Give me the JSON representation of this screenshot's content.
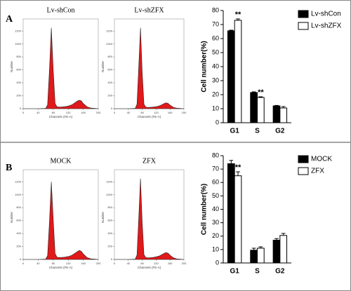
{
  "panel_labels": [
    "A",
    "B"
  ],
  "chart_data": [
    {
      "type": "flow",
      "title": "Lv-shCon",
      "xlabel": "Channels (FE-A)",
      "ylabel": "Number",
      "color": "#e0191b",
      "x": [
        0,
        40,
        60,
        65,
        70,
        75,
        80,
        85,
        90,
        95,
        100,
        110,
        120,
        130,
        140,
        145,
        150,
        155,
        160,
        170,
        180,
        200
      ],
      "values": [
        0,
        0,
        5,
        60,
        600,
        1250,
        600,
        80,
        30,
        25,
        25,
        30,
        40,
        60,
        100,
        120,
        130,
        120,
        80,
        30,
        10,
        0
      ],
      "xlim": [
        0,
        200
      ],
      "xticks": [
        0,
        40,
        80,
        120,
        160,
        200
      ],
      "ylim": [
        0,
        1300
      ],
      "yticks": [
        0,
        200,
        400,
        600,
        800,
        1000,
        1200
      ]
    },
    {
      "type": "flow",
      "title": "Lv-shZFX",
      "xlabel": "Channels (FE-A)",
      "ylabel": "Number",
      "color": "#e0191b",
      "x": [
        0,
        40,
        60,
        65,
        70,
        75,
        80,
        85,
        90,
        95,
        100,
        110,
        120,
        130,
        140,
        145,
        150,
        155,
        160,
        170,
        180,
        200
      ],
      "values": [
        0,
        0,
        5,
        70,
        650,
        1250,
        550,
        70,
        25,
        20,
        20,
        25,
        30,
        45,
        70,
        85,
        90,
        80,
        55,
        20,
        8,
        0
      ],
      "xlim": [
        0,
        200
      ],
      "xticks": [
        0,
        40,
        80,
        120,
        160,
        200
      ],
      "ylim": [
        0,
        1300
      ],
      "yticks": [
        0,
        200,
        400,
        600,
        800,
        1000,
        1200
      ]
    },
    {
      "type": "bar",
      "ylabel": "Cell number(%)",
      "categories": [
        "G1",
        "S",
        "G2"
      ],
      "legend": "top-right",
      "series": [
        {
          "name": "Lv-shCon",
          "color": "#000000",
          "values": [
            65.5,
            21.5,
            12
          ],
          "errors": [
            0.5,
            0.5,
            0.3
          ]
        },
        {
          "name": "Lv-shZFX",
          "color": "#ffffff",
          "values": [
            73,
            18,
            10.5
          ],
          "errors": [
            1,
            0.5,
            1
          ]
        }
      ],
      "annotations": [
        {
          "text": "**",
          "category": "G1",
          "series": "Lv-shZFX"
        },
        {
          "text": "**",
          "category": "S",
          "series": "Lv-shZFX"
        }
      ],
      "ylim": [
        0,
        80
      ],
      "yticks": [
        0,
        10,
        20,
        30,
        40,
        50,
        60,
        70,
        80
      ]
    },
    {
      "type": "flow",
      "title": "MOCK",
      "xlabel": "Channels (FE-A)",
      "ylabel": "Number",
      "color": "#e0191b",
      "x": [
        0,
        40,
        60,
        65,
        70,
        75,
        80,
        85,
        90,
        95,
        100,
        110,
        120,
        130,
        140,
        145,
        150,
        155,
        160,
        170,
        180,
        200
      ],
      "values": [
        0,
        0,
        5,
        60,
        580,
        1200,
        620,
        90,
        35,
        30,
        30,
        35,
        45,
        65,
        105,
        125,
        140,
        125,
        85,
        30,
        10,
        0
      ],
      "xlim": [
        0,
        200
      ],
      "xticks": [
        0,
        40,
        80,
        120,
        160,
        200
      ],
      "ylim": [
        0,
        1300
      ],
      "yticks": [
        0,
        200,
        400,
        600,
        800,
        1000,
        1200
      ]
    },
    {
      "type": "flow",
      "title": "ZFX",
      "xlabel": "Channels (FE-A)",
      "ylabel": "Number",
      "color": "#e0191b",
      "x": [
        0,
        40,
        60,
        65,
        70,
        75,
        80,
        85,
        90,
        95,
        100,
        110,
        120,
        130,
        140,
        145,
        150,
        155,
        160,
        170,
        180,
        200
      ],
      "values": [
        0,
        0,
        5,
        70,
        640,
        1250,
        560,
        75,
        30,
        25,
        25,
        30,
        40,
        55,
        85,
        100,
        105,
        95,
        65,
        25,
        8,
        0
      ],
      "xlim": [
        0,
        200
      ],
      "xticks": [
        0,
        40,
        80,
        120,
        160,
        200
      ],
      "ylim": [
        0,
        1300
      ],
      "yticks": [
        0,
        200,
        400,
        600,
        800,
        1000,
        1200
      ]
    },
    {
      "type": "bar",
      "ylabel": "Cell number(%)",
      "categories": [
        "G1",
        "S",
        "G2"
      ],
      "legend": "top-right",
      "series": [
        {
          "name": "MOCK",
          "color": "#000000",
          "values": [
            74,
            9.5,
            17
          ],
          "errors": [
            2.5,
            1.5,
            1.2
          ]
        },
        {
          "name": "ZFX",
          "color": "#ffffff",
          "values": [
            65,
            11,
            20.5
          ],
          "errors": [
            3,
            1,
            1.5
          ]
        }
      ],
      "annotations": [
        {
          "text": "**",
          "category": "G1",
          "series": "ZFX"
        }
      ],
      "ylim": [
        0,
        80
      ],
      "yticks": [
        0,
        10,
        20,
        30,
        40,
        50,
        60,
        70,
        80
      ]
    }
  ]
}
